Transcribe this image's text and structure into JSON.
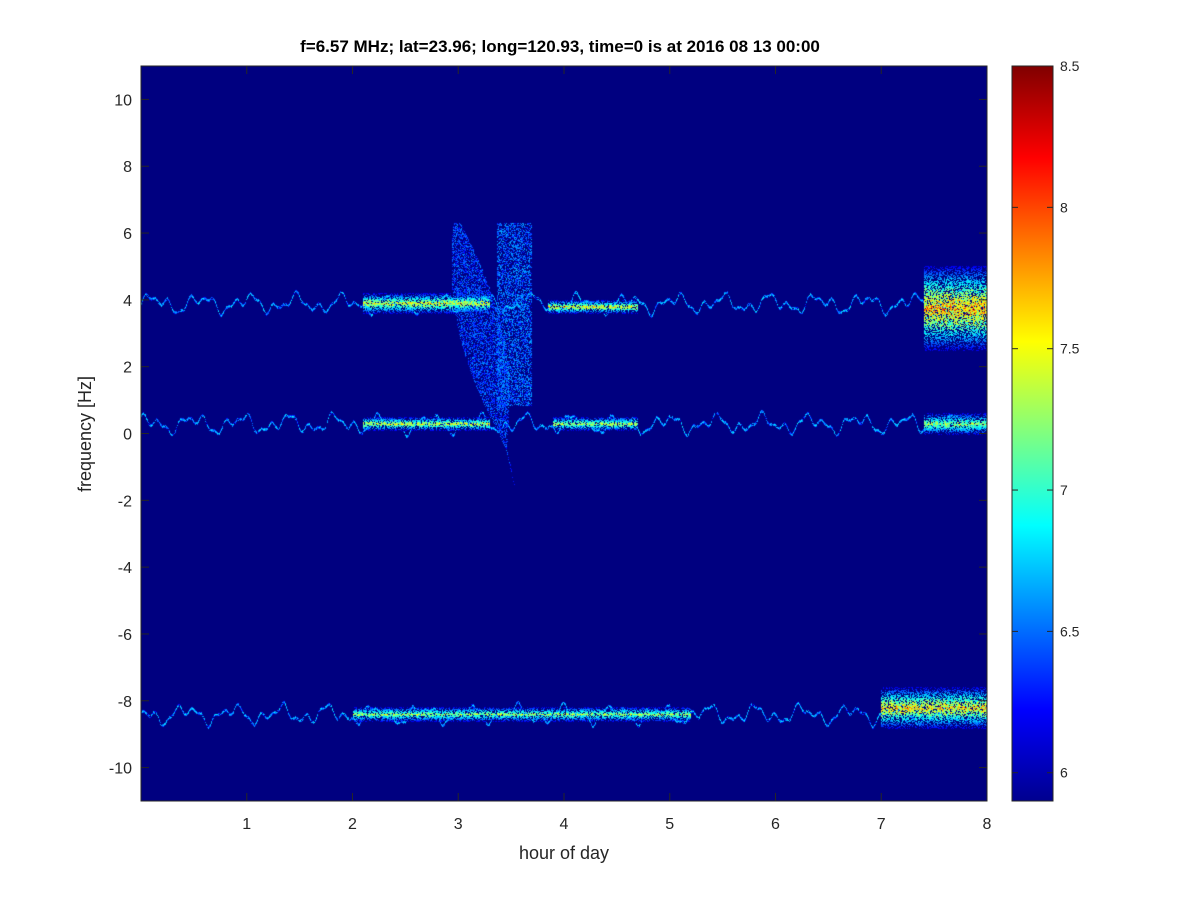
{
  "chart_data": {
    "type": "heatmap",
    "title": "f=6.57 MHz;  lat=23.96; long=120.93, time=0 is at 2016 08 13 00:00",
    "xlabel": "hour of day",
    "ylabel": "frequency [Hz]",
    "xlim": [
      0,
      8
    ],
    "ylim": [
      -11,
      11
    ],
    "x_ticks": [
      1,
      2,
      3,
      4,
      5,
      6,
      7,
      8
    ],
    "y_ticks": [
      -10,
      -8,
      -6,
      -4,
      -2,
      0,
      2,
      4,
      6,
      8,
      10
    ],
    "colorbar": {
      "colormap": "jet",
      "range": [
        5.9,
        8.5
      ],
      "ticks": [
        "6",
        "6.5",
        "7",
        "7.5",
        "8",
        "8.5"
      ],
      "tick_values": [
        6,
        6.5,
        7,
        7.5,
        8,
        8.5
      ]
    },
    "background_value": 5.9,
    "traces": [
      {
        "center_hz": 3.9,
        "hours": [
          0,
          8
        ],
        "typical_value": 6.7
      },
      {
        "center_hz": 0.3,
        "hours": [
          0,
          8
        ],
        "typical_value": 6.7
      },
      {
        "center_hz": -8.4,
        "hours": [
          0,
          8
        ],
        "typical_value": 6.7
      }
    ],
    "bursts": [
      {
        "hours": [
          2.1,
          3.3
        ],
        "hz_range": [
          3.6,
          4.2
        ],
        "peak_value": 7.8
      },
      {
        "hours": [
          3.85,
          4.7
        ],
        "hz_range": [
          3.6,
          4.0
        ],
        "peak_value": 7.9
      },
      {
        "hours": [
          7.4,
          8.0
        ],
        "hz_range": [
          2.5,
          5.0
        ],
        "peak_value": 8.2
      },
      {
        "hours": [
          2.1,
          3.3
        ],
        "hz_range": [
          0.1,
          0.5
        ],
        "peak_value": 7.8
      },
      {
        "hours": [
          3.9,
          4.7
        ],
        "hz_range": [
          0.1,
          0.5
        ],
        "peak_value": 7.7
      },
      {
        "hours": [
          7.4,
          8.0
        ],
        "hz_range": [
          0.0,
          0.6
        ],
        "peak_value": 7.6
      },
      {
        "hours": [
          2.0,
          5.2
        ],
        "hz_range": [
          -8.6,
          -8.2
        ],
        "peak_value": 7.6
      },
      {
        "hours": [
          7.0,
          8.0
        ],
        "hz_range": [
          -8.8,
          -7.6
        ],
        "peak_value": 8.0
      }
    ],
    "slanted_features": [
      {
        "hours": [
          2.85,
          3.75
        ],
        "hz_range": [
          -1.5,
          6.3
        ],
        "typical_value": 6.5
      }
    ]
  }
}
